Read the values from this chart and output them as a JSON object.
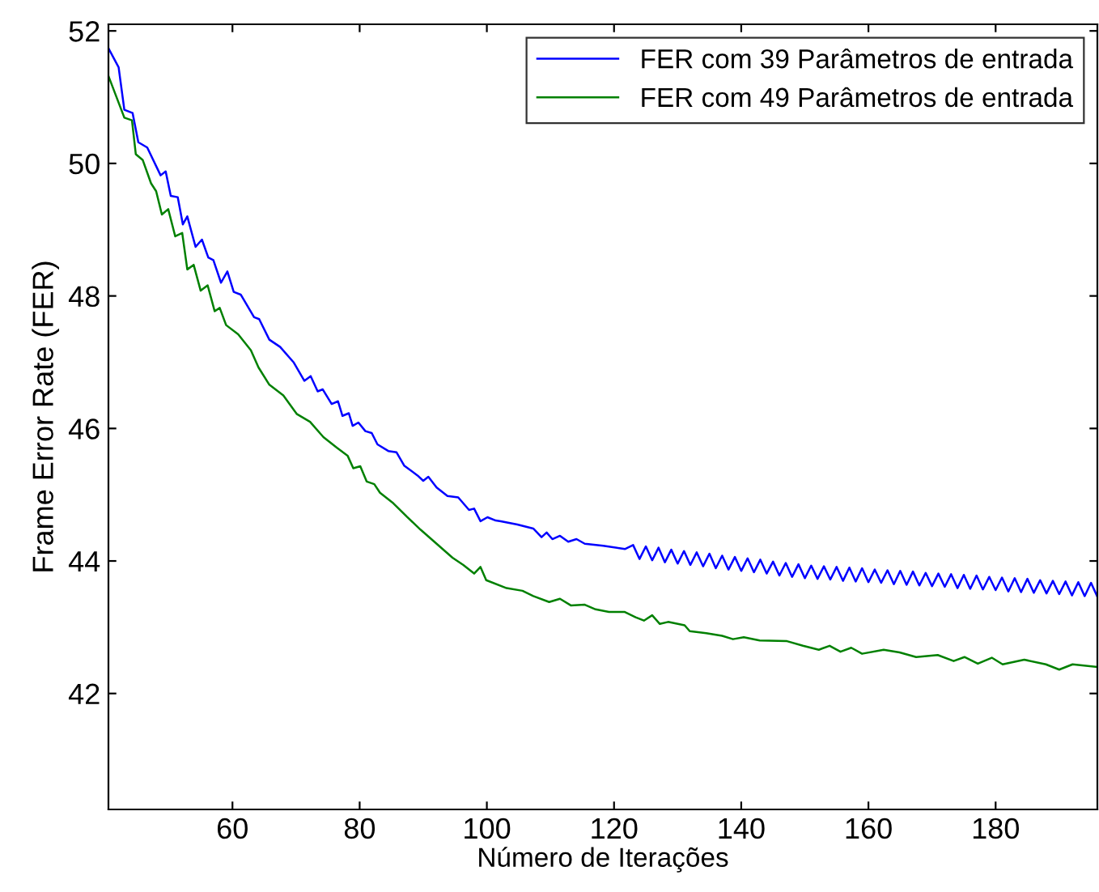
{
  "chart_data": {
    "type": "line",
    "xlabel": "Número de Iterações",
    "ylabel": "Frame Error Rate (FER)",
    "xlim": [
      40.5,
      196
    ],
    "ylim": [
      40.25,
      52.1
    ],
    "xticks": [
      60,
      80,
      100,
      120,
      140,
      160,
      180
    ],
    "yticks": [
      42,
      44,
      46,
      48,
      50,
      52
    ],
    "grid": false,
    "legend": "top right",
    "marker": "none",
    "line_style": "solid",
    "series": [
      {
        "name": "FER com 39 Parâmetros de entrada",
        "color": "#0000ff",
        "x": [
          40.5,
          42.1,
          43,
          44.3,
          45.2,
          46.6,
          48.7,
          49.5,
          50.3,
          51.4,
          52.2,
          52.9,
          54.2,
          55.2,
          56.2,
          57,
          58.2,
          59.2,
          60.2,
          61.3,
          63.4,
          64.2,
          65.8,
          67.5,
          69.6,
          71.3,
          72.3,
          73.4,
          74.2,
          75.6,
          76.6,
          77.3,
          78.3,
          78.9,
          79.8,
          80.9,
          81.9,
          82.8,
          84.5,
          85.8,
          87,
          89.1,
          90,
          90.8,
          92.1,
          93.8,
          95.5,
          97.2,
          98,
          99,
          100.1,
          101.4,
          102.2,
          104.8,
          107.3,
          108.6,
          109.4,
          110.3,
          111.5,
          112.8,
          114.1,
          115.4,
          118.3,
          121.7,
          123,
          124,
          125,
          126,
          127,
          128,
          129,
          130,
          131,
          132,
          133,
          134,
          135,
          136,
          137,
          138,
          139,
          140,
          141,
          142,
          143,
          144,
          145,
          146,
          147,
          148,
          149,
          150,
          151,
          152,
          153,
          154,
          155,
          156,
          157,
          158,
          159,
          160,
          161,
          162,
          163,
          164,
          165,
          166,
          167,
          168,
          169,
          170,
          171,
          172,
          173,
          174,
          175,
          176,
          177,
          178,
          179,
          180,
          181,
          182,
          183,
          184,
          185,
          186,
          187,
          188,
          189,
          190,
          191,
          192,
          193,
          194,
          195,
          196
        ],
        "values": [
          51.74,
          51.45,
          50.81,
          50.76,
          50.32,
          50.24,
          49.82,
          49.88,
          49.51,
          49.49,
          49.08,
          49.2,
          48.74,
          48.85,
          48.58,
          48.54,
          48.2,
          48.37,
          48.06,
          48.02,
          47.68,
          47.65,
          47.34,
          47.23,
          47.0,
          46.72,
          46.79,
          46.56,
          46.59,
          46.37,
          46.41,
          46.19,
          46.23,
          46.04,
          46.09,
          45.96,
          45.93,
          45.76,
          45.66,
          45.64,
          45.44,
          45.29,
          45.21,
          45.27,
          45.11,
          44.98,
          44.96,
          44.77,
          44.79,
          44.6,
          44.66,
          44.61,
          44.6,
          44.55,
          44.49,
          44.36,
          44.43,
          44.33,
          44.38,
          44.29,
          44.33,
          44.26,
          44.23,
          44.18,
          44.24,
          44.03,
          44.22,
          44.01,
          44.2,
          43.98,
          44.17,
          43.96,
          44.15,
          43.94,
          44.13,
          43.92,
          44.11,
          43.89,
          44.08,
          43.87,
          44.06,
          43.85,
          44.04,
          43.83,
          44.02,
          43.81,
          43.99,
          43.78,
          43.97,
          43.76,
          43.95,
          43.74,
          43.93,
          43.73,
          43.92,
          43.72,
          43.91,
          43.7,
          43.9,
          43.69,
          43.89,
          43.68,
          43.87,
          43.67,
          43.86,
          43.65,
          43.85,
          43.64,
          43.84,
          43.63,
          43.82,
          43.62,
          43.81,
          43.61,
          43.8,
          43.59,
          43.79,
          43.58,
          43.78,
          43.57,
          43.76,
          43.56,
          43.75,
          43.54,
          43.74,
          43.53,
          43.73,
          43.52,
          43.71,
          43.51,
          43.7,
          43.5,
          43.69,
          43.48,
          43.68,
          43.47,
          43.67,
          43.46
        ]
      },
      {
        "name": "FER com 49 Parâmetros de entrada",
        "color": "#008000",
        "x": [
          40.5,
          43,
          44.2,
          44.8,
          45.9,
          47.2,
          48,
          48.9,
          49.9,
          51,
          52.1,
          52.9,
          53.9,
          55,
          56.1,
          57.2,
          58,
          59,
          60.9,
          62.9,
          64.1,
          65.8,
          68,
          70.1,
          72.2,
          74.3,
          76.4,
          78.1,
          79,
          80.1,
          81.1,
          82.3,
          83.2,
          85.3,
          87.4,
          89.6,
          94.6,
          96.3,
          98,
          99,
          99.9,
          103.1,
          105.6,
          107.3,
          109.8,
          111.5,
          113.2,
          115.4,
          117.1,
          119.2,
          121.7,
          123.4,
          124.7,
          126,
          127.2,
          128.5,
          131.1,
          131.9,
          134.5,
          137,
          138.7,
          140.4,
          142.9,
          147.2,
          149.7,
          152.2,
          153.9,
          155.6,
          157.3,
          159,
          162.4,
          164.9,
          167.5,
          170.9,
          173.4,
          175.1,
          177.2,
          179.4,
          181.1,
          184.5,
          187.9,
          190,
          192.1,
          195.9
        ],
        "values": [
          51.32,
          50.69,
          50.65,
          50.14,
          50.05,
          49.7,
          49.58,
          49.23,
          49.31,
          48.9,
          48.95,
          48.4,
          48.47,
          48.08,
          48.16,
          47.77,
          47.82,
          47.56,
          47.42,
          47.18,
          46.92,
          46.66,
          46.5,
          46.22,
          46.1,
          45.87,
          45.71,
          45.59,
          45.4,
          45.43,
          45.2,
          45.16,
          45.03,
          44.87,
          44.67,
          44.47,
          44.05,
          43.94,
          43.81,
          43.91,
          43.71,
          43.59,
          43.55,
          43.47,
          43.38,
          43.43,
          43.33,
          43.34,
          43.27,
          43.23,
          43.23,
          43.15,
          43.1,
          43.18,
          43.05,
          43.08,
          43.03,
          42.94,
          42.91,
          42.87,
          42.82,
          42.85,
          42.8,
          42.79,
          42.72,
          42.66,
          42.72,
          42.63,
          42.69,
          42.6,
          42.66,
          42.62,
          42.55,
          42.58,
          42.49,
          42.55,
          42.45,
          42.54,
          42.44,
          42.51,
          42.44,
          42.36,
          42.44,
          42.4
        ]
      }
    ]
  }
}
